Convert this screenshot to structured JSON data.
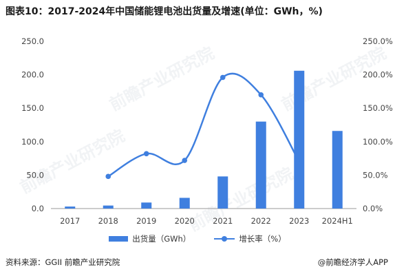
{
  "title": "图表10：2017-2024年中国储能锂电池出货量及增速(单位：GWh，%)",
  "source_label": "资料来源：GGII 前瞻产业研究院",
  "brand_label": "@前瞻经济学人APP",
  "watermark": "前瞻产业研究院",
  "colors": {
    "bar": "#3f7fdf",
    "line": "#3f7fdf"
  },
  "chart_data": {
    "type": "bar",
    "categories": [
      "2017",
      "2018",
      "2019",
      "2020",
      "2021",
      "2022",
      "2023",
      "2024H1"
    ],
    "series": [
      {
        "name": "出货量（GWh）",
        "type": "bar",
        "axis": "left",
        "values": [
          3,
          4.5,
          9,
          16,
          48,
          130,
          206,
          116
        ]
      },
      {
        "name": "增长率（%）",
        "type": "line",
        "axis": "right",
        "values": [
          null,
          48,
          82,
          72,
          196,
          null,
          null,
          null
        ],
        "note_values": {
          "2022": 170,
          "2023": 70
        }
      }
    ],
    "left_axis": {
      "ylim": [
        0,
        250
      ],
      "ticks": [
        "0.0",
        "50.0",
        "100.0",
        "150.0",
        "200.0",
        "250.0"
      ]
    },
    "right_axis": {
      "ylim": [
        0,
        250
      ],
      "ticks": [
        "0.0%",
        "50.0%",
        "100.0%",
        "150.0%",
        "200.0%",
        "250.0%"
      ]
    },
    "legend_position": "bottom",
    "grid": false
  }
}
